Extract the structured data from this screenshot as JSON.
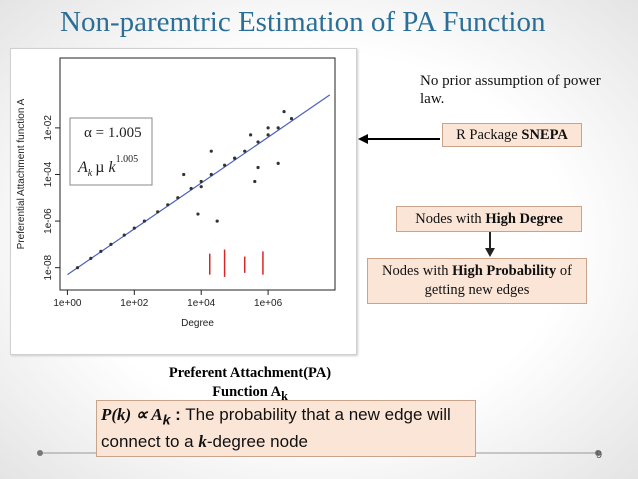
{
  "title": "Non-paremtric Estimation of PA Function",
  "figure": {
    "type": "scatter",
    "x_label": "Degree",
    "y_label": "Preferential Attachment function A",
    "log_x": true,
    "log_y": true,
    "xlim": [
      0.6,
      100000000
    ],
    "ylim": [
      1.1e-09,
      10
    ],
    "xticks": [
      {
        "value": 1,
        "label": "1e+00"
      },
      {
        "value": 100,
        "label": "1e+02"
      },
      {
        "value": 10000,
        "label": "1e+04"
      },
      {
        "value": 1000000,
        "label": "1e+06"
      }
    ],
    "yticks": [
      {
        "value": 1e-08,
        "label": "1e-08"
      },
      {
        "value": 1e-06,
        "label": "1e-06"
      },
      {
        "value": 0.0001,
        "label": "1e-04"
      },
      {
        "value": 0.01,
        "label": "1e-02"
      }
    ],
    "point_color": "#333333",
    "x": [
      2,
      5,
      10,
      20,
      50,
      100,
      200,
      500,
      1000,
      2000,
      5000,
      10000,
      20000,
      50000,
      100000,
      200000,
      500000,
      1000000,
      2000000,
      5000000,
      3000,
      10000,
      20000,
      100000,
      300000,
      1000000,
      500000,
      2000000,
      30000,
      8000,
      400000,
      3000000
    ],
    "y": [
      1e-08,
      2.5e-08,
      5e-08,
      1e-07,
      2.5e-07,
      5e-07,
      1e-06,
      2.5e-06,
      5e-06,
      1e-05,
      2.5e-05,
      5e-05,
      0.0001,
      0.00025,
      0.0005,
      0.001,
      0.0025,
      0.005,
      0.01,
      0.025,
      0.0001,
      3e-05,
      0.001,
      0.0005,
      0.005,
      0.01,
      0.0002,
      0.0003,
      1e-06,
      2e-06,
      5e-05,
      0.05
    ],
    "fit": {
      "color": "#4a5fc1",
      "x": [
        1,
        70000000
      ],
      "y": [
        5e-09,
        0.26
      ]
    },
    "intervals": {
      "color": "#d62728",
      "x": [
        18000,
        50000,
        200000,
        700000
      ],
      "low": [
        5e-09,
        4e-09,
        6e-09,
        5e-09
      ],
      "high": [
        4e-08,
        6e-08,
        3e-08,
        5e-08
      ]
    },
    "inset": {
      "alpha": "α = 1.005",
      "a": "A",
      "a_sub": "k",
      "prop": "µ",
      "k": "k",
      "power": "1.005"
    }
  },
  "note": "No prior assumption of power law.",
  "package": {
    "text": "R Package ",
    "bold": "SNEPA"
  },
  "degree_box": {
    "text": "Nodes with ",
    "bold": "High Degree"
  },
  "probability_box": {
    "text": "Nodes with ",
    "bold": "High Probability",
    "rest": " of getting new edges"
  },
  "caption": {
    "text": "Preferent Attachment(PA) Function A",
    "sub": "k"
  },
  "definition": {
    "formula": "P(k) ∝ A",
    "sub": "k",
    "colon": " :",
    "text": " The probability that a new edge will connect to a ",
    "k": "k",
    "end": "-degree node"
  },
  "page_number": "9"
}
